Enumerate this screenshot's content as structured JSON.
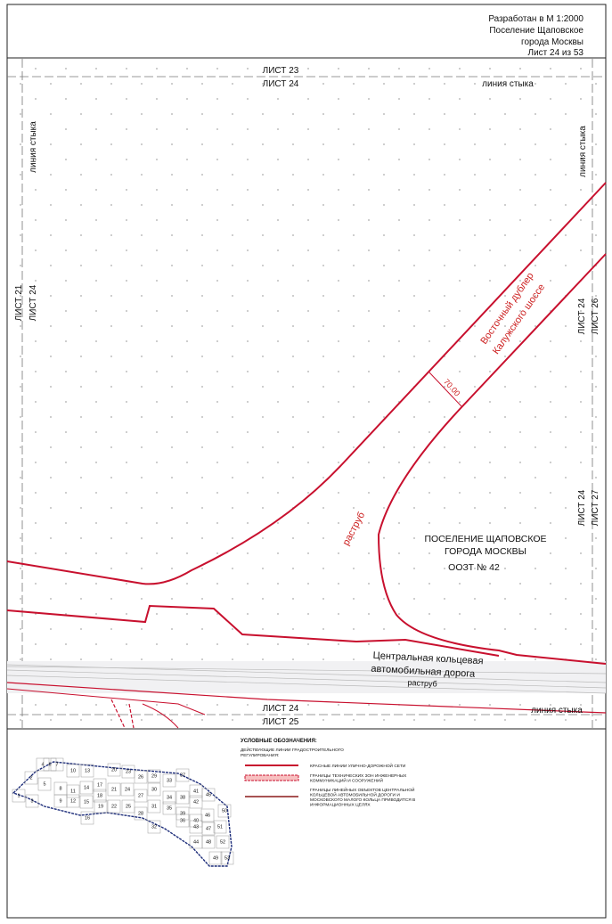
{
  "header": {
    "lines": [
      "Разработан в М 1:2000",
      "Поселение Щаповское",
      "города Москвы",
      "Лист 24 из 53"
    ]
  },
  "map": {
    "top_sheet_above": "ЛИСТ 23",
    "top_sheet_current": "ЛИСТ 24",
    "top_junction": "линия стыка",
    "left_junction": "линия стыка",
    "left_sheet_adjacent": "ЛИСТ 21",
    "left_sheet_current": "ЛИСТ 24",
    "right_junction": "линия стыка",
    "right_upper_current": "ЛИСТ 24",
    "right_upper_adjacent": "ЛИСТ 26",
    "right_lower_current": "ЛИСТ 24",
    "right_lower_adjacent": "ЛИСТ 27",
    "road_name": [
      "Восточный дублер",
      "Калужского шоссе"
    ],
    "width": "70.00",
    "flare_upper": "раструб",
    "settlement": [
      "ПОСЕЛЕНИЕ ЩАПОВСКОЕ",
      "ГОРОДА МОСКВЫ"
    ],
    "zone": "ООЗТ № 42",
    "ring_road": [
      "Центральная кольцевая",
      "автомобильная дорога"
    ],
    "flare_lower": "раструб",
    "bottom_sheet_current": "ЛИСТ 24",
    "bottom_sheet_below": "ЛИСТ 25",
    "bottom_junction": "линия стыка"
  },
  "legend": {
    "title": "УСЛОВНЫЕ ОБОЗНАЧЕНИЯ:",
    "subtitle": [
      "ДЕЙСТВУЮЩИЕ ЛИНИИ ГРАДОСТРОИТЕЛЬНОГО",
      "РЕГУЛИРОВАНИЯ:"
    ],
    "items": [
      [
        "КРАСНЫЕ ЛИНИИ УЛИЧНО-ДОРОЖНОЙ СЕТИ"
      ],
      [
        "ГРАНИЦЫ ТЕХНИЧЕСКИХ ЗОН ИНЖЕНЕРНЫХ",
        "КОММУНИКАЦИЙ И СООРУЖЕНИЙ"
      ],
      [
        "ГРАНИЦЫ ЛИНЕЙНЫХ ОБЪЕКТОВ ЦЕНТРАЛЬНОЙ",
        "КОЛЬЦЕВОЙ АВТОМОБИЛЬНОЙ ДОРОГИ И",
        "МОСКОВСКОГО МАЛОГО КОЛЬЦА ПРИВОДИТСЯ В",
        "ИНФОРМАЦИОННЫХ ЦЕЛЯХ"
      ]
    ]
  },
  "index_map": {
    "sheets": [
      "1",
      "2",
      "3",
      "4",
      "5",
      "6",
      "7",
      "8",
      "9",
      "10",
      "11",
      "12",
      "13",
      "14",
      "15",
      "16",
      "17",
      "18",
      "19",
      "20",
      "21",
      "22",
      "23",
      "24",
      "25",
      "26",
      "27",
      "28",
      "29",
      "30",
      "31",
      "32",
      "33",
      "34",
      "35",
      "36",
      "37",
      "38",
      "39",
      "40",
      "41",
      "42",
      "43",
      "44",
      "45",
      "46",
      "47",
      "48",
      "49",
      "50",
      "51",
      "52",
      "53"
    ]
  }
}
